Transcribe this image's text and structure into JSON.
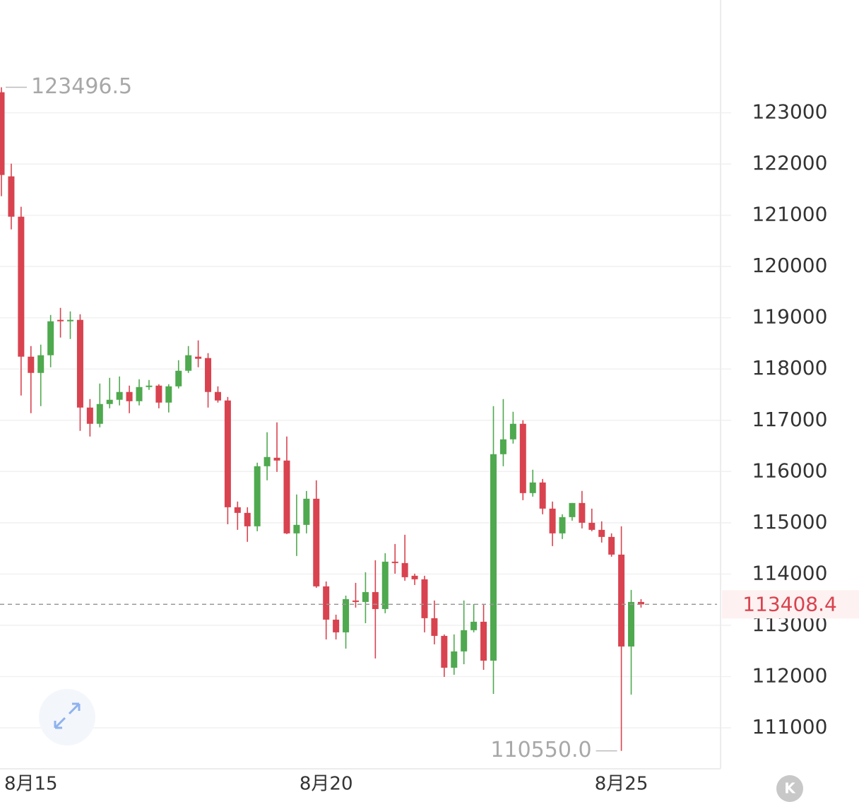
{
  "chart_data": {
    "type": "candlestick",
    "categories": [
      null,
      null,
      null,
      "8月15",
      null,
      null,
      null,
      null,
      null,
      null,
      null,
      null,
      null,
      null,
      null,
      null,
      null,
      null,
      null,
      null,
      null,
      null,
      null,
      null,
      null,
      null,
      null,
      null,
      null,
      null,
      null,
      null,
      null,
      "8月20",
      null,
      null,
      null,
      null,
      null,
      null,
      null,
      null,
      null,
      null,
      null,
      null,
      null,
      null,
      null,
      null,
      null,
      null,
      null,
      null,
      null,
      null,
      null,
      null,
      null,
      null,
      null,
      null,
      null,
      "8月25",
      null,
      null
    ],
    "open": [
      123400,
      121759,
      120972,
      118241,
      117924,
      118269,
      118959,
      118931,
      118959,
      117248,
      116931,
      117317,
      117400,
      117552,
      117372,
      117648,
      117676,
      117345,
      117662,
      117966,
      118241,
      118214,
      117552,
      117386,
      115303,
      115193,
      114931,
      116103,
      116269,
      116214,
      114793,
      114959,
      115469,
      113759,
      113110,
      112862,
      113483,
      113455,
      113648,
      113317,
      114241,
      114214,
      113966,
      113897,
      113138,
      112793,
      112172,
      112490,
      112904,
      113069,
      112310,
      116338,
      116628,
      116931,
      115579,
      115786,
      115276,
      114793,
      115110,
      115386,
      115000,
      114862,
      114724,
      114379,
      112586,
      113455
    ],
    "high": [
      123496.5,
      122007,
      121166,
      118448,
      118476,
      119055,
      119193,
      119124,
      119069,
      117414,
      117717,
      117828,
      117855,
      117676,
      117800,
      117786,
      117703,
      117703,
      118172,
      118448,
      118559,
      118310,
      117662,
      117455,
      115414,
      115303,
      116172,
      116766,
      116959,
      116683,
      115552,
      115621,
      115828,
      113855,
      113207,
      113579,
      113828,
      114035,
      114269,
      114407,
      114586,
      114766,
      114007,
      113966,
      113483,
      112821,
      112821,
      113483,
      113414,
      113414,
      117276,
      117414,
      117166,
      117000,
      116035,
      115855,
      115414,
      115166,
      115386,
      115621,
      115276,
      115028,
      114793,
      114931,
      113690,
      113510
    ],
    "low": [
      121372,
      120724,
      117483,
      117138,
      117276,
      118034,
      118614,
      118586,
      116793,
      116683,
      116862,
      117234,
      117290,
      117138,
      117290,
      117593,
      117234,
      117152,
      117621,
      117924,
      118034,
      117248,
      117345,
      114972,
      114862,
      114628,
      114835,
      115828,
      115993,
      114779,
      114352,
      114793,
      113731,
      112724,
      112724,
      112545,
      113345,
      113041,
      112352,
      113235,
      114007,
      113869,
      113786,
      112862,
      112628,
      111993,
      112035,
      112241,
      112862,
      112131,
      111662,
      116103,
      116545,
      115441,
      115510,
      115166,
      114545,
      114683,
      115041,
      114890,
      114835,
      114614,
      114338,
      110550,
      111648,
      113345
    ],
    "close": [
      121786,
      120972,
      118241,
      117924,
      118269,
      118931,
      118931,
      118959,
      117248,
      116931,
      117317,
      117400,
      117552,
      117372,
      117648,
      117676,
      117345,
      117662,
      117966,
      118269,
      118200,
      117552,
      117386,
      115303,
      115193,
      114931,
      116103,
      116283,
      116214,
      114793,
      114959,
      115469,
      113759,
      113110,
      112862,
      113510,
      113455,
      113648,
      113317,
      114241,
      114214,
      113938,
      113897,
      113138,
      112793,
      112172,
      112490,
      112904,
      113069,
      112310,
      116338,
      116628,
      116931,
      115579,
      115786,
      115276,
      114793,
      115110,
      115386,
      115000,
      114862,
      114724,
      114379,
      112586,
      113455,
      113408.4
    ],
    "up_color": "#4fa94f",
    "down_color": "#d8434f",
    "ylim": [
      110200,
      125200
    ],
    "yticks": [
      111000,
      112000,
      113000,
      114000,
      115000,
      116000,
      117000,
      118000,
      119000,
      120000,
      121000,
      122000,
      123000
    ],
    "grid": true,
    "high_label": 123496.5,
    "low_label": {
      "value": 110550,
      "label": "110550.0"
    },
    "current_price": 113408.4,
    "badge": "K"
  }
}
